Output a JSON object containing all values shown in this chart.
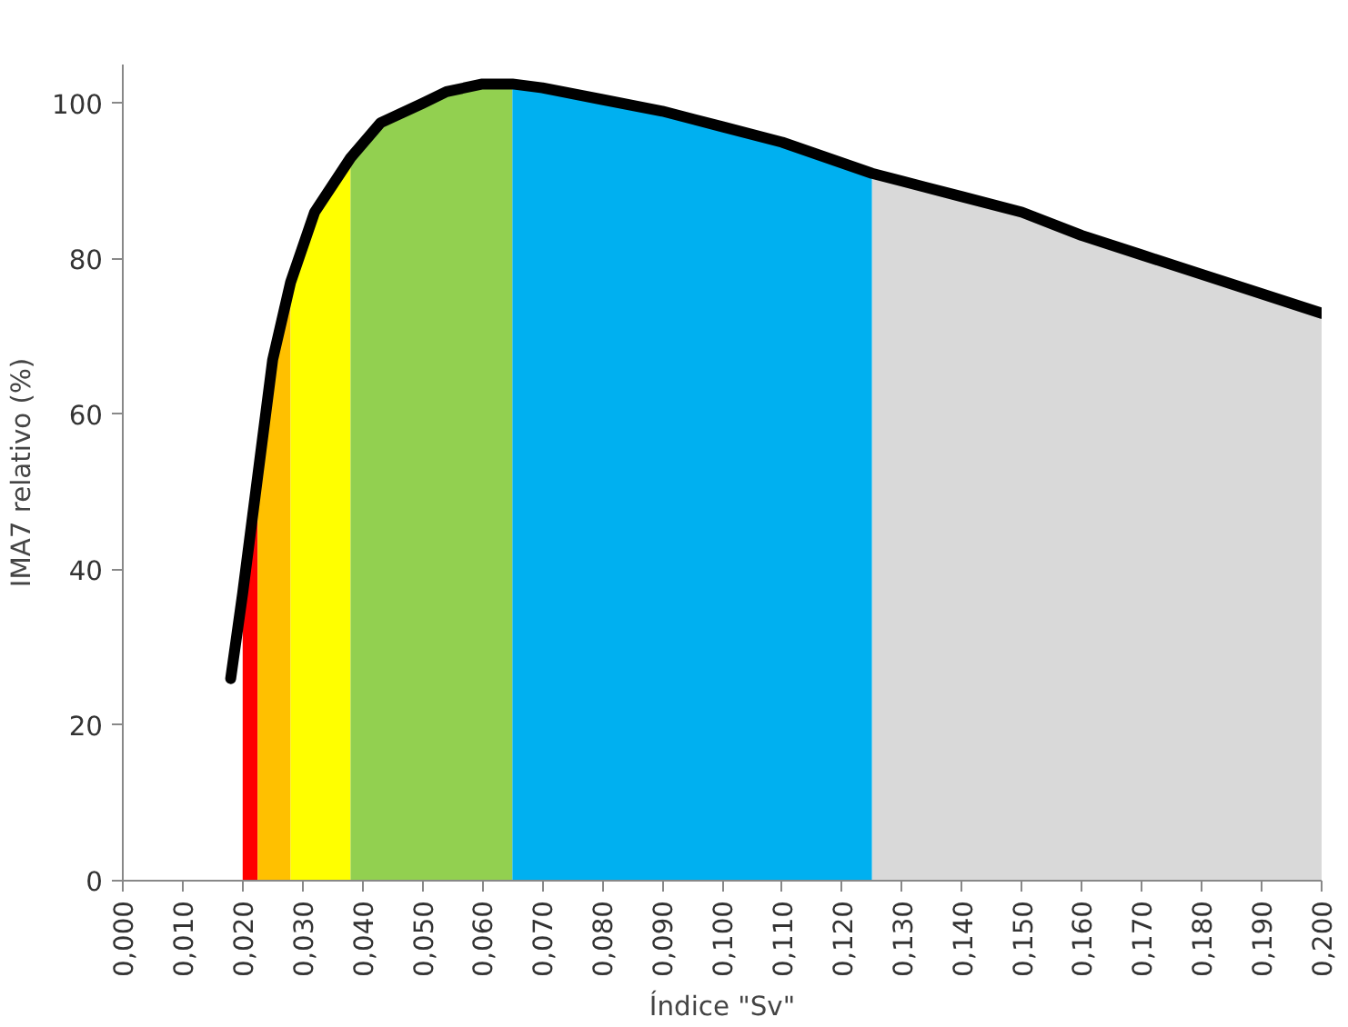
{
  "chart_data": {
    "type": "area",
    "xlabel": "Índice \"Sv\"",
    "ylabel": "IMA7 relativo (%)",
    "xlim": [
      0,
      0.2
    ],
    "xticks": [
      {
        "value": 0,
        "label": "0,000"
      },
      {
        "value": 0.01,
        "label": "0,010"
      },
      {
        "value": 0.02,
        "label": "0,020"
      },
      {
        "value": 0.03,
        "label": "0,030"
      },
      {
        "value": 0.04,
        "label": "0,040"
      },
      {
        "value": 0.05,
        "label": "0,050"
      },
      {
        "value": 0.06,
        "label": "0,060"
      },
      {
        "value": 0.07,
        "label": "0,070"
      },
      {
        "value": 0.08,
        "label": "0,080"
      },
      {
        "value": 0.09,
        "label": "0,090"
      },
      {
        "value": 0.1,
        "label": "0,100"
      },
      {
        "value": 0.11,
        "label": "0,110"
      },
      {
        "value": 0.12,
        "label": "0,120"
      },
      {
        "value": 0.13,
        "label": "0,130"
      },
      {
        "value": 0.14,
        "label": "0,140"
      },
      {
        "value": 0.15,
        "label": "0,150"
      },
      {
        "value": 0.16,
        "label": "0,160"
      },
      {
        "value": 0.17,
        "label": "0,170"
      },
      {
        "value": 0.18,
        "label": "0,180"
      },
      {
        "value": 0.19,
        "label": "0,190"
      },
      {
        "value": 0.2,
        "label": "0,200"
      }
    ],
    "ylim": [
      0,
      105
    ],
    "yticks": [
      0,
      20,
      40,
      60,
      80,
      100
    ],
    "grid": false,
    "series": [
      {
        "color": "#ff0000",
        "x": [
          0.02,
          0.0225
        ],
        "values": [
          37,
          52
        ]
      },
      {
        "color": "#ffc000",
        "x": [
          0.0225,
          0.025,
          0.028
        ],
        "values": [
          52,
          67,
          77
        ]
      },
      {
        "color": "#ffff00",
        "x": [
          0.028,
          0.032,
          0.038
        ],
        "values": [
          77,
          86,
          93
        ]
      },
      {
        "color": "#92d050",
        "x": [
          0.038,
          0.043,
          0.05,
          0.054,
          0.06,
          0.065
        ],
        "values": [
          93,
          97.5,
          100,
          101.5,
          102.5,
          102.5
        ]
      },
      {
        "color": "#00b0f0",
        "x": [
          0.065,
          0.07,
          0.08,
          0.09,
          0.1,
          0.11,
          0.125
        ],
        "values": [
          102.5,
          102,
          100.5,
          99,
          97,
          95,
          91
        ]
      },
      {
        "color": "#d9d9d9",
        "x": [
          0.125,
          0.13,
          0.14,
          0.15,
          0.16,
          0.17,
          0.18,
          0.19,
          0.2
        ],
        "values": [
          91,
          90,
          88,
          86,
          83,
          80.5,
          78,
          75.5,
          73
        ]
      },
      {
        "type": "line",
        "color": "#000000",
        "x": [
          0.018,
          0.02,
          0.0225,
          0.025,
          0.028,
          0.032,
          0.038,
          0.043,
          0.05,
          0.054,
          0.06,
          0.065,
          0.07,
          0.08,
          0.09,
          0.1,
          0.11,
          0.125,
          0.13,
          0.14,
          0.15,
          0.16,
          0.17,
          0.18,
          0.19,
          0.2
        ],
        "values": [
          26,
          37,
          52,
          67,
          77,
          86,
          93,
          97.5,
          100,
          101.5,
          102.5,
          102.5,
          102,
          100.5,
          99,
          97,
          95,
          91,
          90,
          88,
          86,
          83,
          80.5,
          78,
          75.5,
          73
        ]
      }
    ]
  }
}
